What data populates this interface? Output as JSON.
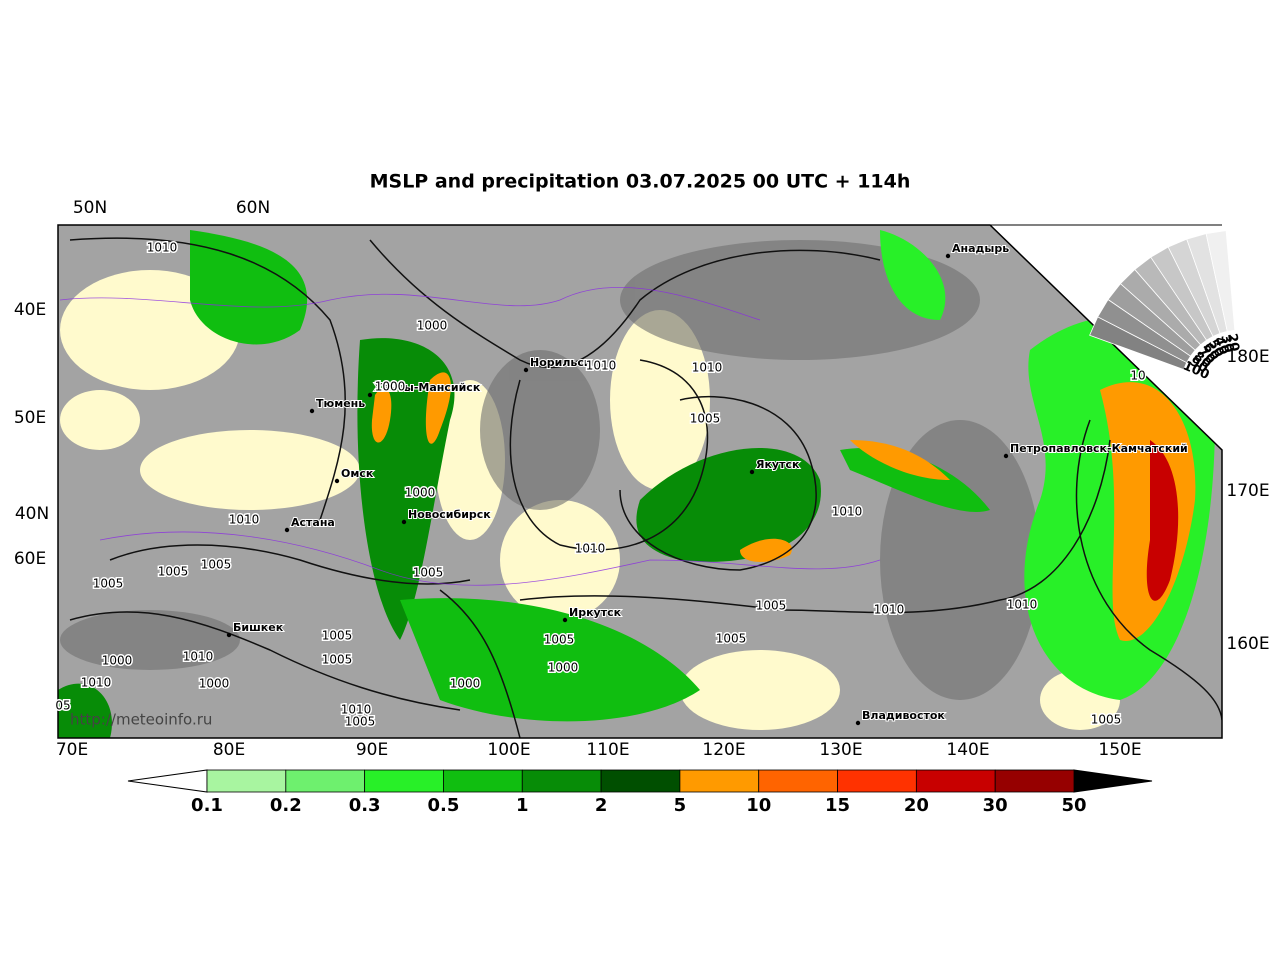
{
  "header": {
    "title": "MSLP and precipitation 03.07.2025 00 UTC + 114h"
  },
  "graticule": [
    "50N",
    "60N",
    "40E",
    "50E",
    "40N",
    "60E",
    "180E",
    "170E",
    "160E",
    "70E",
    "80E",
    "90E",
    "100E",
    "110E",
    "120E",
    "130E",
    "140E",
    "150E"
  ],
  "cities": [
    "Тюмень",
    "Омск",
    "Ханты-Мансийск",
    "Норильск",
    "Новосибирск",
    "Астана",
    "Бишкек",
    "Иркутск",
    "Якутск",
    "Анадырь",
    "Петропавловск-Камчатский",
    "Владивосток"
  ],
  "isobars": [
    "1010",
    "1000",
    "1010",
    "1010",
    "1000",
    "1005",
    "1000",
    "1010",
    "1010",
    "1010",
    "1005",
    "1005",
    "1005",
    "1005",
    "1005",
    "1010",
    "1010",
    "1005",
    "1005",
    "1005",
    "1005",
    "1010",
    "1000",
    "1000",
    "1010",
    "1000",
    "1000",
    "1010",
    "1005",
    "1005",
    "05",
    "10"
  ],
  "legend": {
    "levels": [
      0.1,
      0.2,
      0.3,
      0.5,
      1,
      2,
      5,
      10,
      15,
      20,
      30,
      50
    ],
    "colors": [
      "#a8f5a0",
      "#6ef06e",
      "#28f028",
      "#10be10",
      "#078c07",
      "#004f00",
      "#ff9a00",
      "#ff6400",
      "#ff3200",
      "#c80000",
      "#960000"
    ]
  },
  "cloud_scale": [
    100,
    90,
    80,
    70,
    60,
    50,
    40,
    30,
    20
  ],
  "source": "http://meteoinfo.ru"
}
